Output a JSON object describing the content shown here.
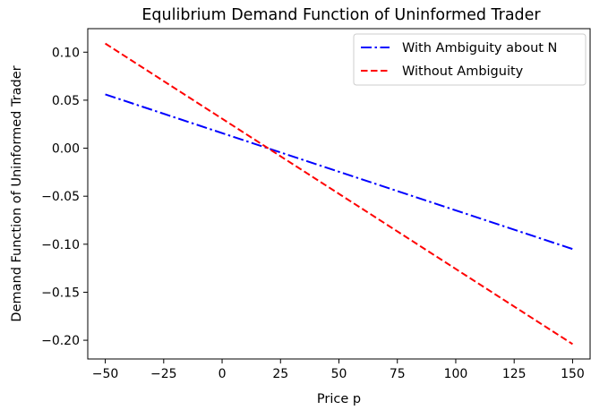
{
  "chart_data": {
    "type": "line",
    "title": "Equlibrium Demand Function of Uninformed Trader",
    "xlabel": "Price p",
    "ylabel": "Demand Function of Uninformed Trader",
    "xlim": [
      -57.5,
      157.5
    ],
    "ylim": [
      -0.2195,
      0.1245
    ],
    "xticks": [
      -50,
      -25,
      0,
      25,
      50,
      75,
      100,
      125,
      150
    ],
    "xtick_labels": [
      "−50",
      "−25",
      "0",
      "25",
      "50",
      "75",
      "100",
      "125",
      "150"
    ],
    "yticks": [
      0.1,
      0.05,
      0.0,
      -0.05,
      -0.1,
      -0.15,
      -0.2
    ],
    "ytick_labels": [
      "0.10",
      "0.05",
      "0.00",
      "−0.05",
      "−0.10",
      "−0.15",
      "−0.20"
    ],
    "grid": false,
    "legend_position": "top-right",
    "series": [
      {
        "name": "With Ambiguity about N",
        "color": "#0000ff",
        "style": "dashdot",
        "x": [
          -50,
          150
        ],
        "y": [
          0.056,
          -0.105
        ]
      },
      {
        "name": "Without Ambiguity",
        "color": "#ff0000",
        "style": "dashed",
        "x": [
          -50,
          150
        ],
        "y": [
          0.109,
          -0.204
        ]
      }
    ]
  }
}
